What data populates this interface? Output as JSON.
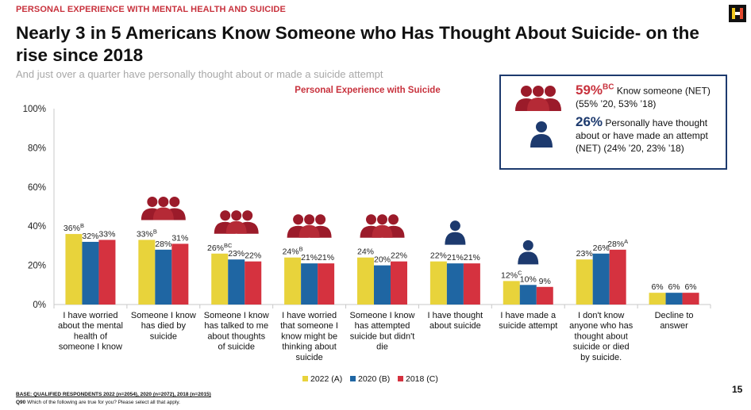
{
  "header": {
    "kicker": "PERSONAL EXPERIENCE WITH MENTAL HEALTH AND SUICIDE",
    "title": "Nearly 3 in 5 Americans Know Someone who Has Thought About Suicide- on the rise since 2018",
    "subtitle": "And just over a quarter have personally thought about or made a suicide attempt"
  },
  "callout": {
    "pct1": "59%",
    "pct1_sup": "BC",
    "text1": "Know someone (NET) (55% ’20, 53% ’18)",
    "pct2": "26%",
    "text2": "Personally have thought about or have made an attempt (NET) (24% ’20, 23% ’18)"
  },
  "footer": {
    "base": "BASE: QUALIFIED RESPONDENTS 2022 (n=2054), 2020 (n=2072), 2018 (n=2015)",
    "question_code": "Q90",
    "question": "Which of the following are true for you? Please select all that apply.",
    "page_number": "15"
  },
  "icons": {
    "group": "group-of-people-icon",
    "person": "person-icon",
    "logo": "harris-poll-logo-icon"
  },
  "colors": {
    "accent_red": "#c8323d",
    "dark_red": "#9b1b2a",
    "navy": "#1d3a6e"
  },
  "chart_data": {
    "type": "bar",
    "title": "Personal Experience with Suicide",
    "categories": [
      [
        "I have worried",
        "about the mental",
        "health of",
        "someone I know"
      ],
      [
        "Someone I know",
        "has died by",
        "suicide"
      ],
      [
        "Someone I know",
        "has talked to me",
        "about thoughts",
        "of suicide"
      ],
      [
        "I have worried",
        "that someone I",
        "know might be",
        "thinking about",
        "suicide"
      ],
      [
        "Someone I know",
        "has attempted",
        "suicide but didn't",
        "die"
      ],
      [
        "I have thought",
        "about suicide"
      ],
      [
        "I have made a",
        "suicide attempt"
      ],
      [
        "I don't know",
        "anyone who has",
        "thought about",
        "suicide or died",
        "by suicide."
      ],
      [
        "Decline to",
        "answer"
      ]
    ],
    "series": [
      {
        "name": "2022 (A)",
        "color": "#e8d33b",
        "values": [
          36,
          33,
          26,
          24,
          24,
          22,
          12,
          23,
          6
        ],
        "sup": [
          "B",
          "B",
          "BC",
          "B",
          "",
          "",
          "C",
          "",
          ""
        ]
      },
      {
        "name": "2020 (B)",
        "color": "#1f66a3",
        "values": [
          32,
          28,
          23,
          21,
          20,
          21,
          10,
          26,
          6
        ],
        "sup": [
          "",
          "",
          "",
          "",
          "",
          "",
          "",
          "",
          ""
        ]
      },
      {
        "name": "2018 (C)",
        "color": "#d5323f",
        "values": [
          33,
          31,
          22,
          21,
          22,
          21,
          9,
          28,
          6
        ],
        "sup": [
          "",
          "",
          "",
          "",
          "",
          "",
          "",
          "A",
          ""
        ]
      }
    ],
    "category_icons": [
      "",
      "group",
      "group",
      "group",
      "group",
      "person",
      "person",
      "",
      ""
    ],
    "yticks": [
      "0%",
      "20%",
      "40%",
      "60%",
      "80%",
      "100%"
    ],
    "ylim": [
      0,
      100
    ],
    "legend_position": "bottom"
  }
}
